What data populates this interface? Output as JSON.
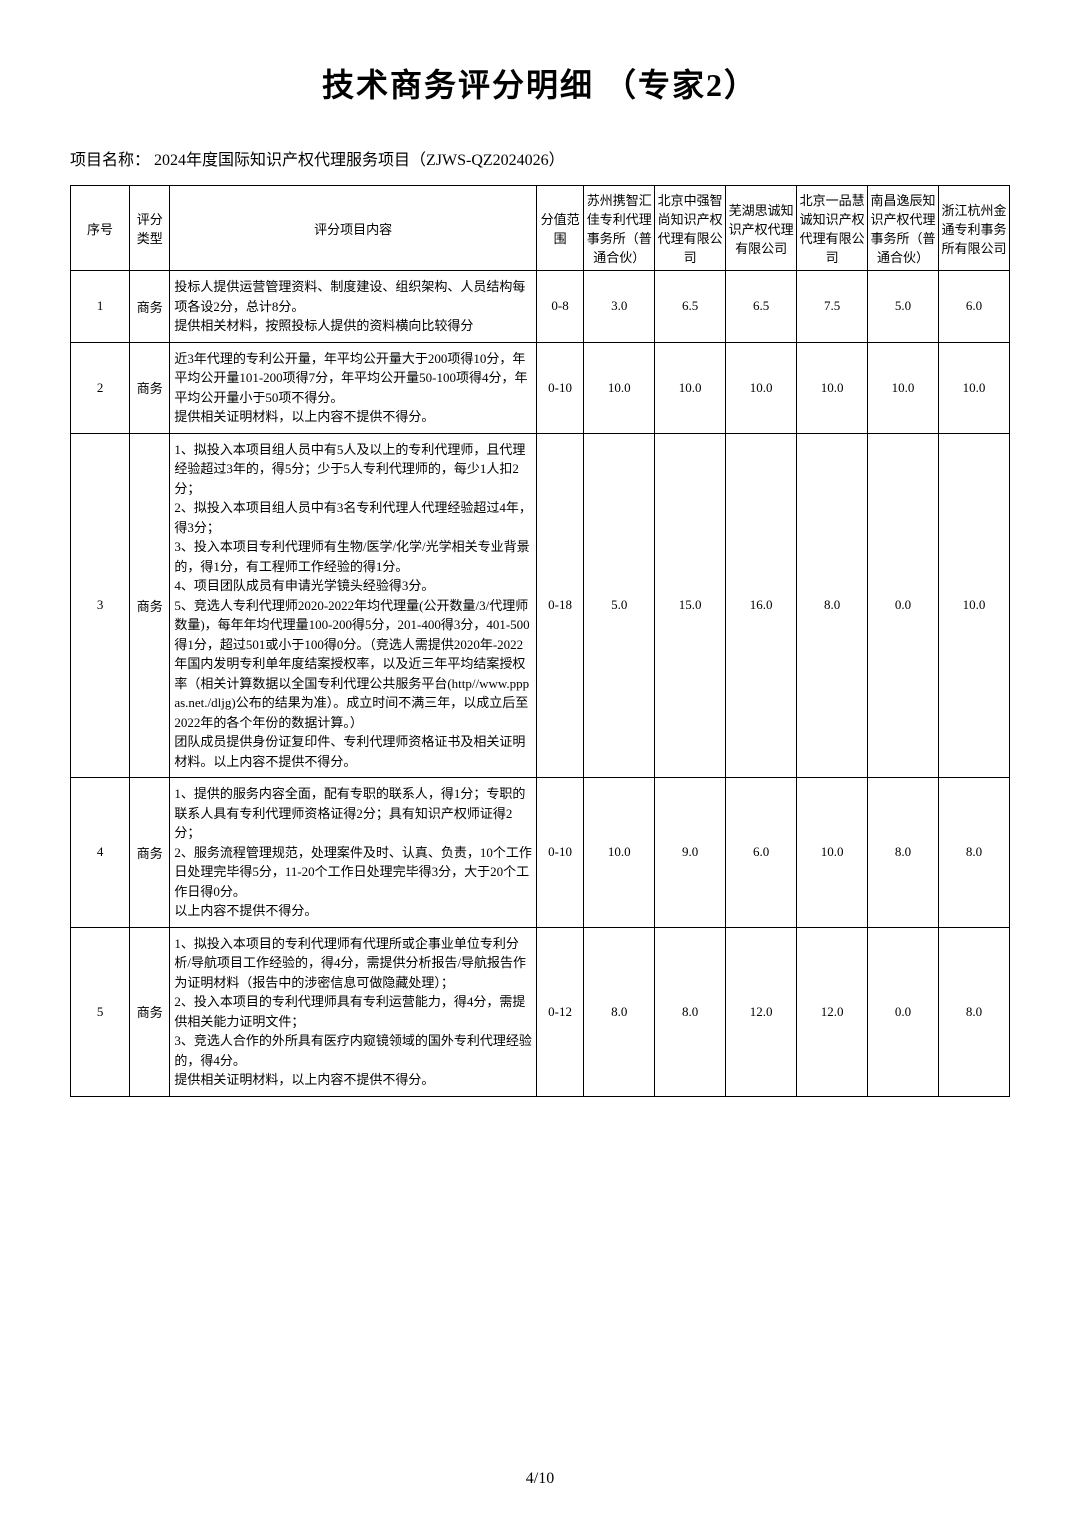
{
  "page": {
    "title": "技术商务评分明细 （专家2）",
    "project_label": "项目名称：",
    "project_name": "2024年度国际知识产权代理服务项目（ZJWS-QZ2024026）",
    "footer": "4/10"
  },
  "headers": {
    "seq": "序号",
    "type": "评分类型",
    "content": "评分项目内容",
    "range": "分值范围",
    "companies": [
      "苏州携智汇佳专利代理事务所（普通合伙）",
      "北京中强智尚知识产权代理有限公司",
      "芜湖思诚知识产权代理有限公司",
      "北京一品慧诚知识产权代理有限公司",
      "南昌逸辰知识产权代理事务所（普通合伙）",
      "浙江杭州金通专利事务所有限公司"
    ]
  },
  "rows": [
    {
      "seq": "1",
      "type": "商务",
      "content": "投标人提供运营管理资料、制度建设、组织架构、人员结构每项各设2分，总计8分。\n提供相关材料，按照投标人提供的资料横向比较得分",
      "range": "0-8",
      "scores": [
        "3.0",
        "6.5",
        "6.5",
        "7.5",
        "5.0",
        "6.0"
      ]
    },
    {
      "seq": "2",
      "type": "商务",
      "content": "近3年代理的专利公开量，年平均公开量大于200项得10分，年平均公开量101-200项得7分，年平均公开量50-100项得4分，年平均公开量小于50项不得分。\n提供相关证明材料，以上内容不提供不得分。",
      "range": "0-10",
      "scores": [
        "10.0",
        "10.0",
        "10.0",
        "10.0",
        "10.0",
        "10.0"
      ]
    },
    {
      "seq": "3",
      "type": "商务",
      "content": "1、拟投入本项目组人员中有5人及以上的专利代理师，且代理经验超过3年的，得5分；少于5人专利代理师的，每少1人扣2分；\n2、拟投入本项目组人员中有3名专利代理人代理经验超过4年，得3分；\n3、投入本项目专利代理师有生物/医学/化学/光学相关专业背景的，得1分，有工程师工作经验的得1分。\n4、项目团队成员有申请光学镜头经验得3分。\n5、竞选人专利代理师2020-2022年均代理量(公开数量/3/代理师数量)，每年年均代理量100-200得5分，201-400得3分，401-500得1分，超过501或小于100得0分。（竞选人需提供2020年-2022年国内发明专利单年度结案授权率，以及近三年平均结案授权率（相关计算数据以全国专利代理公共服务平台(http//www.pppas.net./dljg)公布的结果为准）。成立时间不满三年，以成立后至2022年的各个年份的数据计算。）\n团队成员提供身份证复印件、专利代理师资格证书及相关证明材料。以上内容不提供不得分。",
      "range": "0-18",
      "scores": [
        "5.0",
        "15.0",
        "16.0",
        "8.0",
        "0.0",
        "10.0"
      ]
    },
    {
      "seq": "4",
      "type": "商务",
      "content": "1、提供的服务内容全面，配有专职的联系人，得1分；专职的联系人具有专利代理师资格证得2分；具有知识产权师证得2分；\n2、服务流程管理规范，处理案件及时、认真、负责，10个工作日处理完毕得5分，11-20个工作日处理完毕得3分，大于20个工作日得0分。\n以上内容不提供不得分。",
      "range": "0-10",
      "scores": [
        "10.0",
        "9.0",
        "6.0",
        "10.0",
        "8.0",
        "8.0"
      ]
    },
    {
      "seq": "5",
      "type": "商务",
      "content": "1、拟投入本项目的专利代理师有代理所或企事业单位专利分析/导航项目工作经验的，得4分，需提供分析报告/导航报告作为证明材料（报告中的涉密信息可做隐藏处理）；\n2、投入本项目的专利代理师具有专利运营能力，得4分，需提供相关能力证明文件；\n3、竞选人合作的外所具有医疗内窥镜领域的国外专利代理经验的，得4分。\n提供相关证明材料，以上内容不提供不得分。",
      "range": "0-12",
      "scores": [
        "8.0",
        "8.0",
        "12.0",
        "12.0",
        "0.0",
        "8.0"
      ]
    }
  ]
}
